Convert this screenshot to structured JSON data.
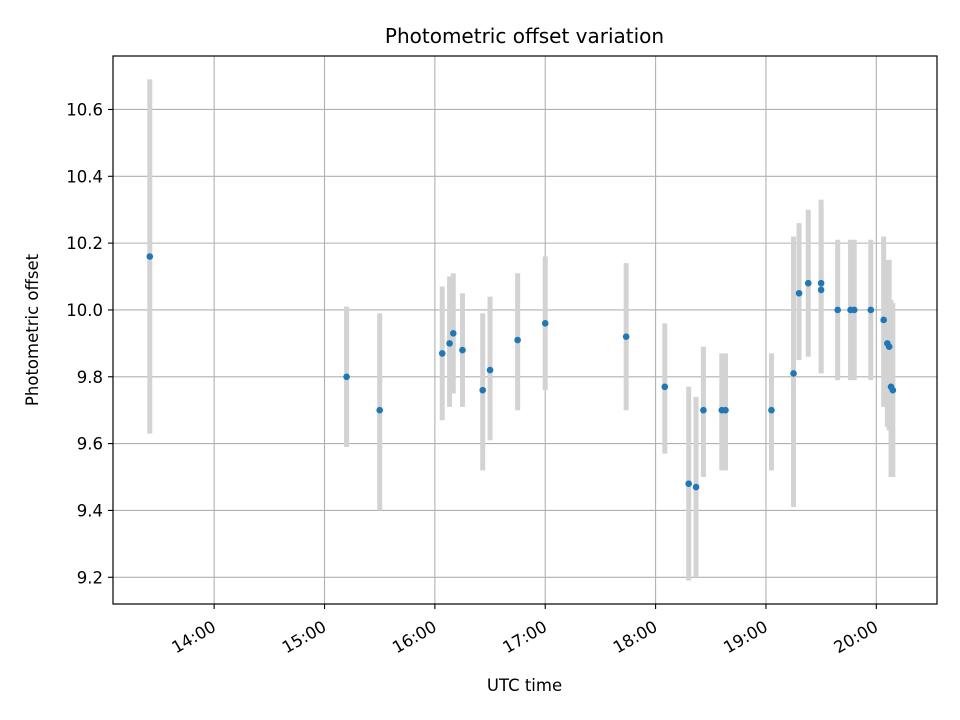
{
  "chart_data": {
    "type": "scatter",
    "title": "Photometric offset variation",
    "xlabel": "UTC time",
    "ylabel": "Photometric offset",
    "xlim": [
      "13:05",
      "20:33"
    ],
    "ylim": [
      9.12,
      10.76
    ],
    "grid": true,
    "error_bars": true,
    "marker_color": "#1f77b4",
    "errorbar_color": "#d3d3d3",
    "x_ticks": [
      "14:00",
      "15:00",
      "16:00",
      "17:00",
      "18:00",
      "19:00",
      "20:00"
    ],
    "y_ticks": [
      "9.2",
      "9.4",
      "9.6",
      "9.8",
      "10.0",
      "10.2",
      "10.4",
      "10.6"
    ],
    "series": [
      {
        "points": [
          {
            "x": "13:25",
            "y": 10.16,
            "yerr": [
              9.63,
              10.69
            ]
          },
          {
            "x": "15:12",
            "y": 9.8,
            "yerr": [
              9.59,
              10.01
            ]
          },
          {
            "x": "15:30",
            "y": 9.7,
            "yerr": [
              9.4,
              9.99
            ]
          },
          {
            "x": "16:04",
            "y": 9.87,
            "yerr": [
              9.67,
              10.07
            ]
          },
          {
            "x": "16:08",
            "y": 9.9,
            "yerr": [
              9.71,
              10.1
            ]
          },
          {
            "x": "16:10",
            "y": 9.93,
            "yerr": [
              9.75,
              10.11
            ]
          },
          {
            "x": "16:15",
            "y": 9.88,
            "yerr": [
              9.71,
              10.05
            ]
          },
          {
            "x": "16:26",
            "y": 9.76,
            "yerr": [
              9.52,
              9.99
            ]
          },
          {
            "x": "16:30",
            "y": 9.82,
            "yerr": [
              9.61,
              10.04
            ]
          },
          {
            "x": "16:45",
            "y": 9.91,
            "yerr": [
              9.7,
              10.11
            ]
          },
          {
            "x": "17:00",
            "y": 9.96,
            "yerr": [
              9.76,
              10.16
            ]
          },
          {
            "x": "17:44",
            "y": 9.92,
            "yerr": [
              9.7,
              10.14
            ]
          },
          {
            "x": "18:05",
            "y": 9.77,
            "yerr": [
              9.57,
              9.96
            ]
          },
          {
            "x": "18:18",
            "y": 9.48,
            "yerr": [
              9.19,
              9.77
            ]
          },
          {
            "x": "18:22",
            "y": 9.47,
            "yerr": [
              9.2,
              9.74
            ]
          },
          {
            "x": "18:26",
            "y": 9.7,
            "yerr": [
              9.5,
              9.89
            ]
          },
          {
            "x": "18:36",
            "y": 9.7,
            "yerr": [
              9.52,
              9.87
            ]
          },
          {
            "x": "18:38",
            "y": 9.7,
            "yerr": [
              9.52,
              9.87
            ]
          },
          {
            "x": "19:03",
            "y": 9.7,
            "yerr": [
              9.52,
              9.87
            ]
          },
          {
            "x": "19:15",
            "y": 9.81,
            "yerr": [
              9.41,
              10.22
            ]
          },
          {
            "x": "19:18",
            "y": 10.05,
            "yerr": [
              9.85,
              10.26
            ]
          },
          {
            "x": "19:23",
            "y": 10.08,
            "yerr": [
              9.86,
              10.3
            ]
          },
          {
            "x": "19:30",
            "y": 10.08,
            "yerr": [
              9.81,
              10.33
            ]
          },
          {
            "x": "19:30",
            "y": 10.06,
            "yerr": [
              9.81,
              10.3
            ]
          },
          {
            "x": "19:39",
            "y": 10.0,
            "yerr": [
              9.79,
              10.21
            ]
          },
          {
            "x": "19:46",
            "y": 10.0,
            "yerr": [
              9.79,
              10.21
            ]
          },
          {
            "x": "19:48",
            "y": 10.0,
            "yerr": [
              9.79,
              10.21
            ]
          },
          {
            "x": "19:57",
            "y": 10.0,
            "yerr": [
              9.79,
              10.21
            ]
          },
          {
            "x": "20:04",
            "y": 9.97,
            "yerr": [
              9.71,
              10.22
            ]
          },
          {
            "x": "20:06",
            "y": 9.9,
            "yerr": [
              9.65,
              10.15
            ]
          },
          {
            "x": "20:07",
            "y": 9.89,
            "yerr": [
              9.64,
              10.15
            ]
          },
          {
            "x": "20:08",
            "y": 9.77,
            "yerr": [
              9.5,
              10.03
            ]
          },
          {
            "x": "20:09",
            "y": 9.76,
            "yerr": [
              9.5,
              10.02
            ]
          }
        ]
      }
    ]
  }
}
